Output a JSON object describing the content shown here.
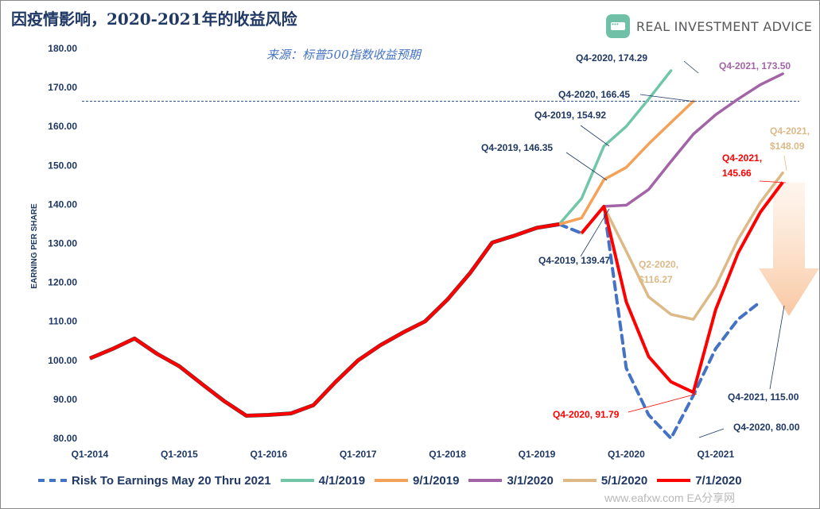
{
  "title": "因疫情影响，2020-2021年的收益风险",
  "subtitle": "来源：标普500指数收益预期",
  "brand": {
    "logo_text": "REAL INVESTMENT ADVICE",
    "accent": "#6fc0a7"
  },
  "watermark": "www.eafxw.com  EA分享网",
  "chart_data": {
    "type": "line",
    "title": "因疫情影响，2020-2021年的收益风险",
    "ylabel": "EARNING PER SHARE",
    "xlabel": "",
    "ylim": [
      80,
      180
    ],
    "yticks": [
      "80.00",
      "90.00",
      "100.00",
      "110.00",
      "120.00",
      "130.00",
      "140.00",
      "150.00",
      "160.00",
      "170.00",
      "180.00"
    ],
    "xticks": [
      "Q1-2014",
      "Q1-2015",
      "Q1-2016",
      "Q1-2017",
      "Q1-2018",
      "Q1-2019",
      "Q1-2020",
      "Q1-2021"
    ],
    "x_start_index": 0,
    "reference_line": 166.45,
    "grid": false,
    "legend_position": "bottom",
    "history": {
      "name": "7/1/2020",
      "color": "#ff0000",
      "values": [
        100.5,
        102.9,
        105.6,
        101.7,
        98.5,
        94.0,
        89.6,
        85.8,
        86.0,
        86.4,
        88.5,
        94.5,
        100.0,
        103.9,
        107.1,
        110.0,
        115.6,
        122.3,
        130.2,
        132.0,
        134.0,
        134.9
      ]
    },
    "series": [
      {
        "name": "Risk To Earnings May 20 Thru 2021",
        "color": "#4472c4",
        "dash": true,
        "start": 21,
        "values": [
          134.9,
          132.6,
          139.47,
          98.0,
          86.0,
          80.0,
          91.0,
          103.0,
          110.5,
          115.0
        ]
      },
      {
        "name": "4/1/2019",
        "color": "#71c6a8",
        "start": 21,
        "values": [
          134.9,
          141.5,
          154.92,
          160.0,
          167.0,
          174.29
        ]
      },
      {
        "name": "9/1/2019",
        "color": "#f4a259",
        "start": 21,
        "values": [
          134.9,
          136.5,
          146.35,
          149.5,
          155.5,
          161.0,
          166.45
        ]
      },
      {
        "name": "3/1/2020",
        "color": "#a264a6",
        "start": 22,
        "values": [
          132.6,
          139.5,
          139.8,
          143.8,
          151.0,
          158.0,
          163.0,
          167.0,
          170.7,
          173.5
        ]
      },
      {
        "name": "5/1/2020",
        "color": "#dcb987",
        "start": 22,
        "values": [
          132.6,
          139.47,
          128.0,
          116.27,
          111.8,
          110.5,
          119.0,
          131.0,
          140.5,
          148.09
        ]
      },
      {
        "name": "7/1/2020",
        "color": "#ff0000",
        "start": 22,
        "values": [
          132.6,
          139.47,
          115.0,
          101.0,
          94.5,
          91.79,
          113.0,
          127.5,
          138.0,
          145.66
        ]
      }
    ],
    "annotations": [
      {
        "text": "Q4-2020, 174.29",
        "color": "#1f3864"
      },
      {
        "text": "Q4-2021, 173.50",
        "color": "#a264a6"
      },
      {
        "text": "Q4-2020, 166.45",
        "color": "#1f3864"
      },
      {
        "text": "Q4-2019, 154.92",
        "color": "#1f3864"
      },
      {
        "text": "Q4-2019, 146.35",
        "color": "#1f3864"
      },
      {
        "text": "Q4-2021,",
        "color": "#dcb987"
      },
      {
        "text": "$148.09",
        "color": "#dcb987"
      },
      {
        "text": "Q4-2021,",
        "color": "#ff0000"
      },
      {
        "text": "145.66",
        "color": "#ff0000"
      },
      {
        "text": "Q4-2019, 139.47",
        "color": "#1f3864"
      },
      {
        "text": "Q2-2020,",
        "color": "#dcb987"
      },
      {
        "text": "$116.27",
        "color": "#dcb987"
      },
      {
        "text": "Q4-2021, 115.00",
        "color": "#1f3864"
      },
      {
        "text": "Q4-2020, 91.79",
        "color": "#ff0000"
      },
      {
        "text": "Q4-2020, 80.00",
        "color": "#1f3864"
      }
    ]
  },
  "legend": [
    {
      "label": "Risk To Earnings May 20 Thru 2021",
      "color": "#4472c4",
      "dash": true
    },
    {
      "label": "4/1/2019",
      "color": "#71c6a8"
    },
    {
      "label": "9/1/2019",
      "color": "#f4a259"
    },
    {
      "label": "3/1/2020",
      "color": "#a264a6"
    },
    {
      "label": "5/1/2020",
      "color": "#dcb987"
    },
    {
      "label": "7/1/2020",
      "color": "#ff0000"
    }
  ]
}
